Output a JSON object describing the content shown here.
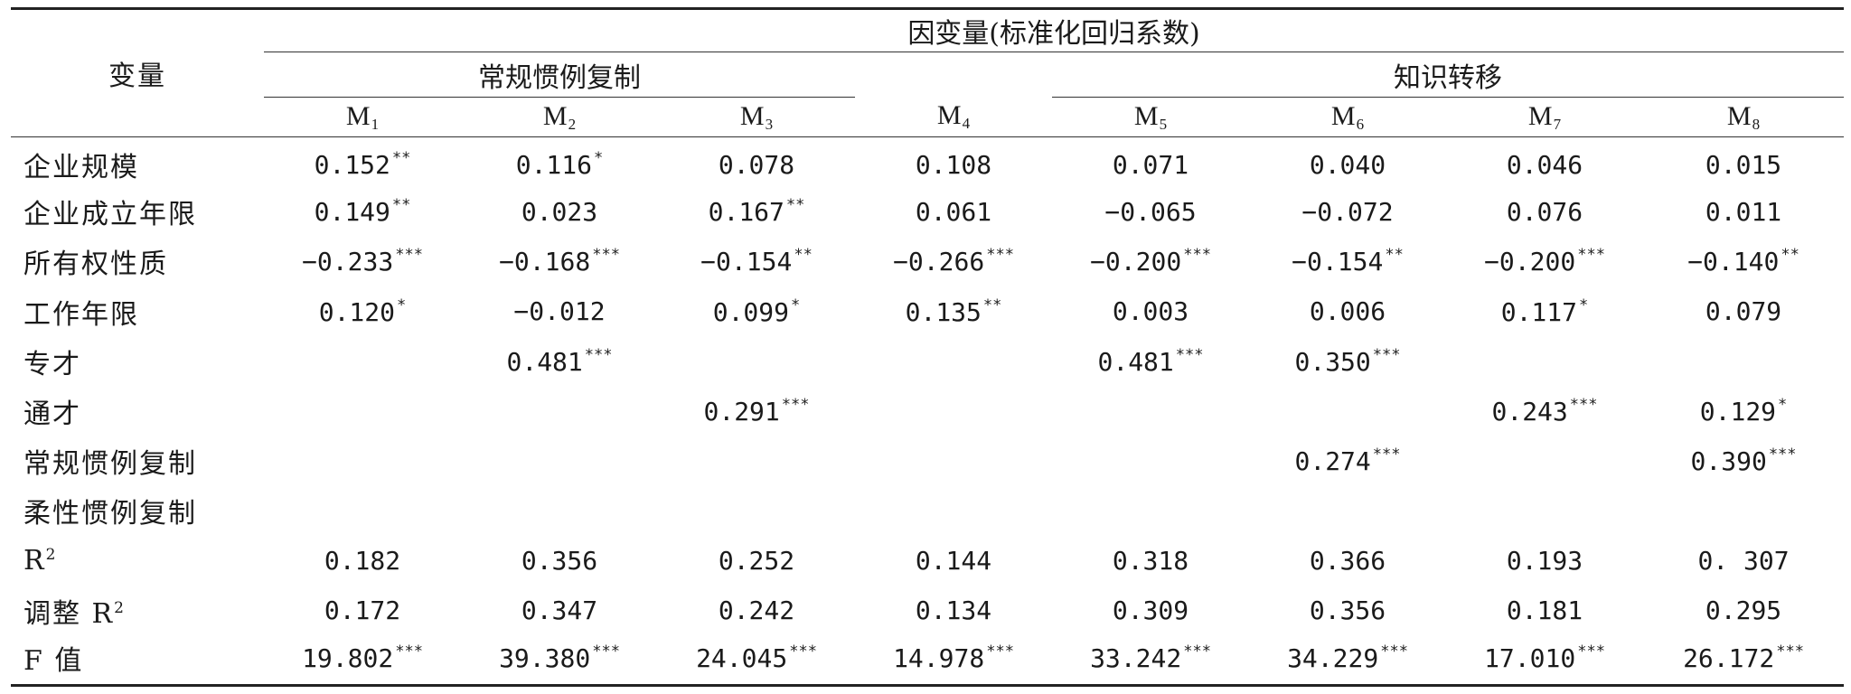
{
  "header": {
    "variable_label": "变量",
    "dependent_label": "因变量(标准化回归系数)",
    "group_routine": "常规惯例复制",
    "group_transfer": "知识转移",
    "models": [
      {
        "base": "M",
        "sub": "1"
      },
      {
        "base": "M",
        "sub": "2"
      },
      {
        "base": "M",
        "sub": "3"
      },
      {
        "base": "M",
        "sub": "4"
      },
      {
        "base": "M",
        "sub": "5"
      },
      {
        "base": "M",
        "sub": "6"
      },
      {
        "base": "M",
        "sub": "7"
      },
      {
        "base": "M",
        "sub": "8"
      }
    ]
  },
  "rows": [
    {
      "label": "企业规模",
      "cells": [
        {
          "v": "0.152",
          "s": "**"
        },
        {
          "v": "0.116",
          "s": "*"
        },
        {
          "v": "0.078",
          "s": ""
        },
        {
          "v": "0.108",
          "s": ""
        },
        {
          "v": "0.071",
          "s": ""
        },
        {
          "v": "0.040",
          "s": ""
        },
        {
          "v": "0.046",
          "s": ""
        },
        {
          "v": "0.015",
          "s": ""
        }
      ]
    },
    {
      "label": "企业成立年限",
      "cells": [
        {
          "v": "0.149",
          "s": "**"
        },
        {
          "v": "0.023",
          "s": ""
        },
        {
          "v": "0.167",
          "s": "**"
        },
        {
          "v": "0.061",
          "s": ""
        },
        {
          "v": "−0.065",
          "s": ""
        },
        {
          "v": "−0.072",
          "s": ""
        },
        {
          "v": "0.076",
          "s": ""
        },
        {
          "v": "0.011",
          "s": ""
        }
      ]
    },
    {
      "label": "所有权性质",
      "cells": [
        {
          "v": "−0.233",
          "s": "***"
        },
        {
          "v": "−0.168",
          "s": "***"
        },
        {
          "v": "−0.154",
          "s": "**"
        },
        {
          "v": "−0.266",
          "s": "***"
        },
        {
          "v": "−0.200",
          "s": "***"
        },
        {
          "v": "−0.154",
          "s": "**"
        },
        {
          "v": "−0.200",
          "s": "***"
        },
        {
          "v": "−0.140",
          "s": "**"
        }
      ]
    },
    {
      "label": "工作年限",
      "cells": [
        {
          "v": "0.120",
          "s": "*"
        },
        {
          "v": "−0.012",
          "s": ""
        },
        {
          "v": "0.099",
          "s": "*"
        },
        {
          "v": "0.135",
          "s": "**"
        },
        {
          "v": "0.003",
          "s": ""
        },
        {
          "v": "0.006",
          "s": ""
        },
        {
          "v": "0.117",
          "s": "*"
        },
        {
          "v": "0.079",
          "s": ""
        }
      ]
    },
    {
      "label": "专才",
      "cells": [
        {
          "v": "",
          "s": ""
        },
        {
          "v": "0.481",
          "s": "***"
        },
        {
          "v": "",
          "s": ""
        },
        {
          "v": "",
          "s": ""
        },
        {
          "v": "0.481",
          "s": "***"
        },
        {
          "v": "0.350",
          "s": "***"
        },
        {
          "v": "",
          "s": ""
        },
        {
          "v": "",
          "s": ""
        }
      ]
    },
    {
      "label": "通才",
      "cells": [
        {
          "v": "",
          "s": ""
        },
        {
          "v": "",
          "s": ""
        },
        {
          "v": "0.291",
          "s": "***"
        },
        {
          "v": "",
          "s": ""
        },
        {
          "v": "",
          "s": ""
        },
        {
          "v": "",
          "s": ""
        },
        {
          "v": "0.243",
          "s": "***"
        },
        {
          "v": "0.129",
          "s": "*"
        }
      ]
    },
    {
      "label": "常规惯例复制",
      "cells": [
        {
          "v": "",
          "s": ""
        },
        {
          "v": "",
          "s": ""
        },
        {
          "v": "",
          "s": ""
        },
        {
          "v": "",
          "s": ""
        },
        {
          "v": "",
          "s": ""
        },
        {
          "v": "0.274",
          "s": "***"
        },
        {
          "v": "",
          "s": ""
        },
        {
          "v": "0.390",
          "s": "***"
        }
      ]
    },
    {
      "label": "柔性惯例复制",
      "cells": [
        {
          "v": "",
          "s": ""
        },
        {
          "v": "",
          "s": ""
        },
        {
          "v": "",
          "s": ""
        },
        {
          "v": "",
          "s": ""
        },
        {
          "v": "",
          "s": ""
        },
        {
          "v": "",
          "s": ""
        },
        {
          "v": "",
          "s": ""
        },
        {
          "v": "",
          "s": ""
        }
      ]
    },
    {
      "label": "R",
      "sup": "2",
      "cells": [
        {
          "v": "0.182",
          "s": ""
        },
        {
          "v": "0.356",
          "s": ""
        },
        {
          "v": "0.252",
          "s": ""
        },
        {
          "v": "0.144",
          "s": ""
        },
        {
          "v": "0.318",
          "s": ""
        },
        {
          "v": "0.366",
          "s": ""
        },
        {
          "v": "0.193",
          "s": ""
        },
        {
          "v": "0. 307",
          "s": ""
        }
      ]
    },
    {
      "label": "调整 R",
      "sup": "2",
      "cells": [
        {
          "v": "0.172",
          "s": ""
        },
        {
          "v": "0.347",
          "s": ""
        },
        {
          "v": "0.242",
          "s": ""
        },
        {
          "v": "0.134",
          "s": ""
        },
        {
          "v": "0.309",
          "s": ""
        },
        {
          "v": "0.356",
          "s": ""
        },
        {
          "v": "0.181",
          "s": ""
        },
        {
          "v": "0.295",
          "s": ""
        }
      ]
    },
    {
      "label": "F 值",
      "cells": [
        {
          "v": "19.802",
          "s": "***"
        },
        {
          "v": "39.380",
          "s": "***"
        },
        {
          "v": "24.045",
          "s": "***"
        },
        {
          "v": "14.978",
          "s": "***"
        },
        {
          "v": "33.242",
          "s": "***"
        },
        {
          "v": "34.229",
          "s": "***"
        },
        {
          "v": "17.010",
          "s": "***"
        },
        {
          "v": "26.172",
          "s": "***"
        }
      ]
    }
  ]
}
